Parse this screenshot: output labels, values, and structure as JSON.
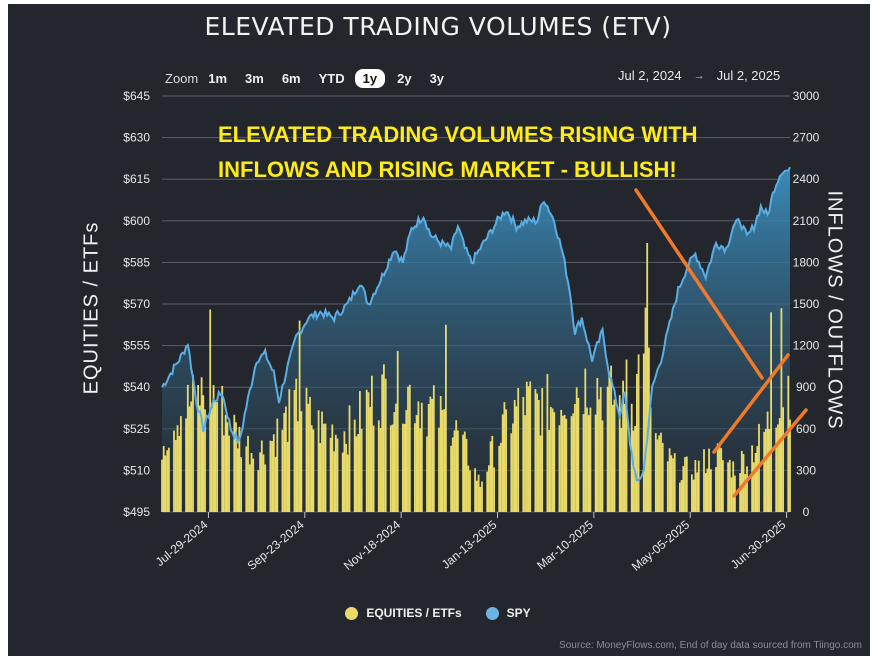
{
  "colors": {
    "background": "#23272d",
    "equities": "#e8db6a",
    "spy_line": "#5aaee3",
    "annotation": "#ffeb1a",
    "arrow": "#f07a2a"
  },
  "toolbar": {
    "zoom_label": "Zoom",
    "zoom_options": [
      "1m",
      "3m",
      "6m",
      "YTD",
      "1y",
      "2y",
      "3y"
    ],
    "active_zoom": "1y",
    "date_from": "Jul 2, 2024",
    "date_to": "Jul 2, 2025",
    "arrow_glyph": "→"
  },
  "chart_data": {
    "type": "bar",
    "title": "ELEVATED TRADING VOLUMES (ETV)",
    "annotation_line1": "ELEVATED TRADING VOLUMES RISING WITH",
    "annotation_line2": "INFLOWS AND RISING MARKET - BULLISH!",
    "ylabel_left": "EQUITIES / ETFs",
    "ylabel_right": "INFLOWS / OUTFLOWS",
    "left_axis": {
      "min": 495,
      "max": 645,
      "ticks": [
        "$495",
        "$510",
        "$525",
        "$540",
        "$555",
        "$570",
        "$585",
        "$600",
        "$615",
        "$630",
        "$645"
      ]
    },
    "right_axis": {
      "min": 0,
      "max": 3000,
      "ticks": [
        "0",
        "300",
        "600",
        "900",
        "1200",
        "1500",
        "1800",
        "2100",
        "2400",
        "2700",
        "3000"
      ]
    },
    "x_ticks": [
      "Jul-29-2024",
      "Sep-23-2024",
      "Nov-18-2024",
      "Jan-13-2025",
      "Mar-10-2025",
      "May-05-2025",
      "Jun-30-2025"
    ],
    "x_tick_days": [
      27,
      83,
      139,
      195,
      251,
      307,
      363
    ],
    "total_days": 366,
    "series": [
      {
        "name": "EQUITIES / ETFs",
        "axis": "right",
        "anchors": [
          [
            0,
            500
          ],
          [
            10,
            720
          ],
          [
            20,
            820
          ],
          [
            28,
            900
          ],
          [
            38,
            680
          ],
          [
            46,
            520
          ],
          [
            55,
            420
          ],
          [
            62,
            500
          ],
          [
            70,
            620
          ],
          [
            80,
            800
          ],
          [
            88,
            640
          ],
          [
            96,
            600
          ],
          [
            104,
            560
          ],
          [
            112,
            620
          ],
          [
            120,
            800
          ],
          [
            130,
            880
          ],
          [
            140,
            900
          ],
          [
            150,
            800
          ],
          [
            158,
            720
          ],
          [
            166,
            640
          ],
          [
            172,
            560
          ],
          [
            178,
            400
          ],
          [
            185,
            200
          ],
          [
            190,
            380
          ],
          [
            200,
            640
          ],
          [
            210,
            800
          ],
          [
            220,
            760
          ],
          [
            230,
            780
          ],
          [
            240,
            900
          ],
          [
            250,
            950
          ],
          [
            260,
            840
          ],
          [
            268,
            760
          ],
          [
            275,
            800
          ],
          [
            280,
            1400
          ],
          [
            286,
            540
          ],
          [
            292,
            420
          ],
          [
            300,
            300
          ],
          [
            310,
            320
          ],
          [
            322,
            420
          ],
          [
            332,
            320
          ],
          [
            340,
            400
          ],
          [
            350,
            560
          ],
          [
            358,
            820
          ],
          [
            365,
            950
          ]
        ],
        "spikes": [
          [
            28,
            1460
          ],
          [
            80,
            1380
          ],
          [
            138,
            1420
          ],
          [
            165,
            1350
          ],
          [
            237,
            1080
          ],
          [
            250,
            1330
          ],
          [
            264,
            1500
          ],
          [
            270,
            1100
          ],
          [
            279,
            1910
          ],
          [
            282,
            1940
          ],
          [
            349,
            1250
          ],
          [
            354,
            1440
          ],
          [
            360,
            1470
          ]
        ]
      },
      {
        "name": "SPY",
        "axis": "left",
        "anchors": [
          [
            0,
            540
          ],
          [
            5,
            545
          ],
          [
            12,
            552
          ],
          [
            15,
            556
          ],
          [
            20,
            535
          ],
          [
            24,
            525
          ],
          [
            30,
            535
          ],
          [
            35,
            538
          ],
          [
            40,
            525
          ],
          [
            45,
            520
          ],
          [
            48,
            530
          ],
          [
            55,
            550
          ],
          [
            60,
            552
          ],
          [
            65,
            545
          ],
          [
            68,
            535
          ],
          [
            72,
            545
          ],
          [
            78,
            558
          ],
          [
            85,
            565
          ],
          [
            92,
            567
          ],
          [
            100,
            565
          ],
          [
            108,
            570
          ],
          [
            115,
            578
          ],
          [
            120,
            570
          ],
          [
            128,
            580
          ],
          [
            135,
            590
          ],
          [
            140,
            585
          ],
          [
            145,
            597
          ],
          [
            152,
            602
          ],
          [
            156,
            595
          ],
          [
            162,
            592
          ],
          [
            168,
            590
          ],
          [
            172,
            598
          ],
          [
            176,
            590
          ],
          [
            180,
            585
          ],
          [
            185,
            590
          ],
          [
            190,
            595
          ],
          [
            195,
            600
          ],
          [
            200,
            604
          ],
          [
            206,
            598
          ],
          [
            212,
            600
          ],
          [
            218,
            600
          ],
          [
            222,
            608
          ],
          [
            228,
            600
          ],
          [
            233,
            588
          ],
          [
            237,
            575
          ],
          [
            240,
            560
          ],
          [
            244,
            565
          ],
          [
            250,
            550
          ],
          [
            256,
            560
          ],
          [
            260,
            545
          ],
          [
            266,
            530
          ],
          [
            269,
            538
          ],
          [
            272,
            520
          ],
          [
            276,
            505
          ],
          [
            280,
            510
          ],
          [
            285,
            540
          ],
          [
            290,
            550
          ],
          [
            296,
            565
          ],
          [
            300,
            575
          ],
          [
            305,
            583
          ],
          [
            310,
            588
          ],
          [
            316,
            580
          ],
          [
            322,
            592
          ],
          [
            328,
            590
          ],
          [
            332,
            598
          ],
          [
            336,
            600
          ],
          [
            340,
            594
          ],
          [
            344,
            598
          ],
          [
            348,
            605
          ],
          [
            352,
            602
          ],
          [
            356,
            612
          ],
          [
            360,
            618
          ],
          [
            365,
            618
          ]
        ]
      }
    ],
    "legend": [
      "EQUITIES / ETFs",
      "SPY"
    ],
    "source": "Source: MoneyFlows.com, End of day data sourced from Tiingo.com"
  }
}
